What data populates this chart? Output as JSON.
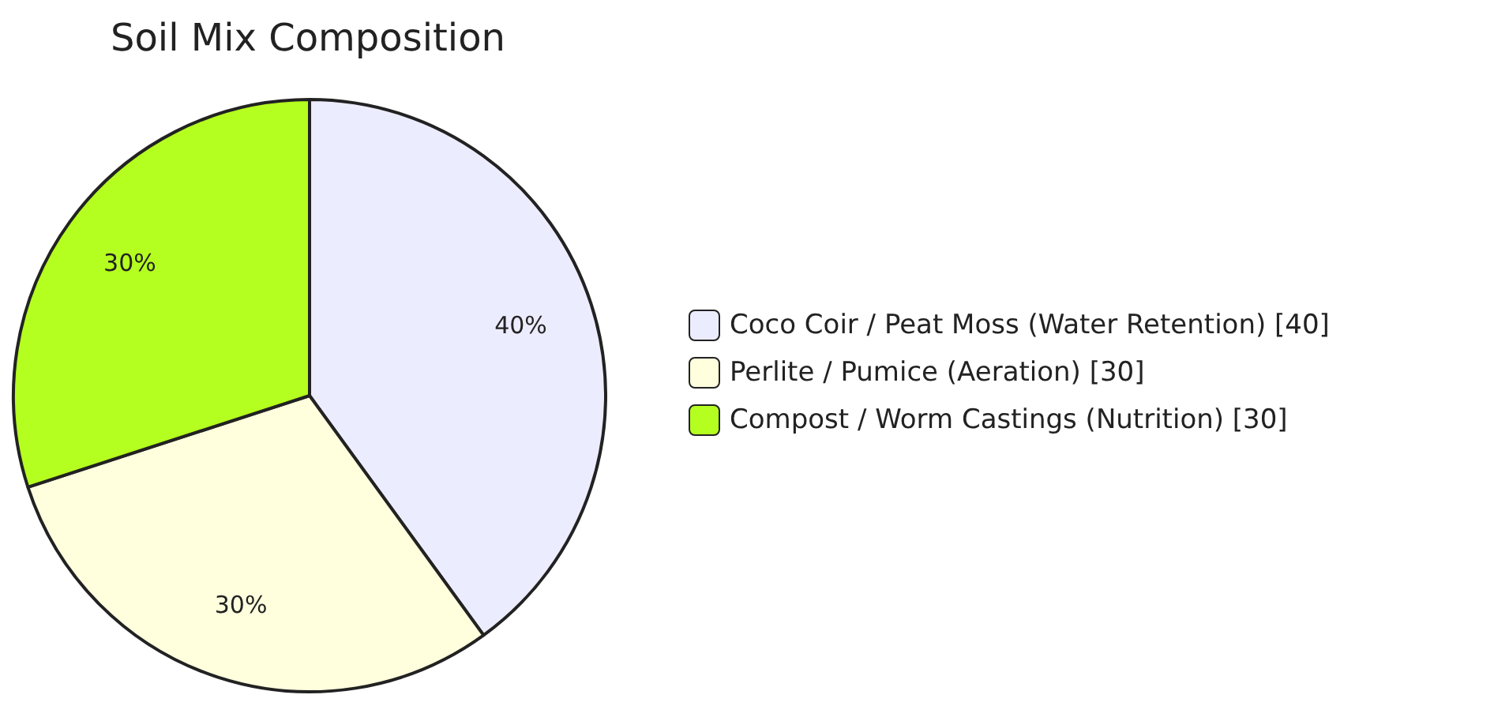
{
  "chart_data": {
    "type": "pie",
    "title": "Soil Mix Composition",
    "categories": [
      "Coco Coir / Peat Moss (Water Retention) [40]",
      "Perlite / Pumice (Aeration) [30]",
      "Compost / Worm Castings (Nutrition) [30]"
    ],
    "values": [
      40,
      30,
      30
    ],
    "colors": [
      "#ececff",
      "#ffffde",
      "#b5ff20"
    ],
    "value_labels": [
      "40%",
      "30%",
      "30%"
    ],
    "legend": "right"
  }
}
